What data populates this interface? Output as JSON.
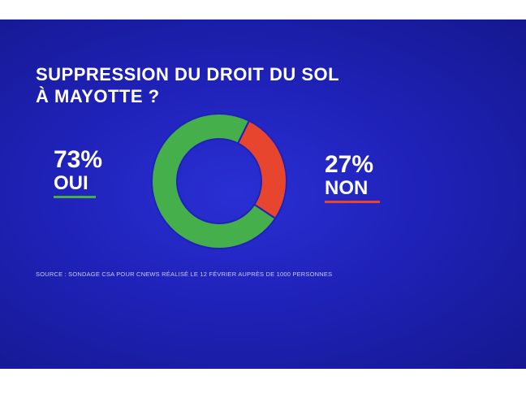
{
  "title_line1": "SUPPRESSION DU DROIT DU SOL",
  "title_line2": "À MAYOTTE ?",
  "source": "SOURCE : SONDAGE CSA POUR CNEWS RÉALISÉ LE 12 FÉVRIER AUPRÈS DE 1000 PERSONNES",
  "chart_data": {
    "type": "pie",
    "style": "donut",
    "title": "SUPPRESSION DU DROIT DU SOL À MAYOTTE ?",
    "slices": [
      {
        "label": "OUI",
        "value": 73,
        "value_label": "73%",
        "color": "#45b04b"
      },
      {
        "label": "NON",
        "value": 27,
        "value_label": "27%",
        "color": "#e8452e"
      }
    ],
    "background_color": "#1f22b8"
  }
}
